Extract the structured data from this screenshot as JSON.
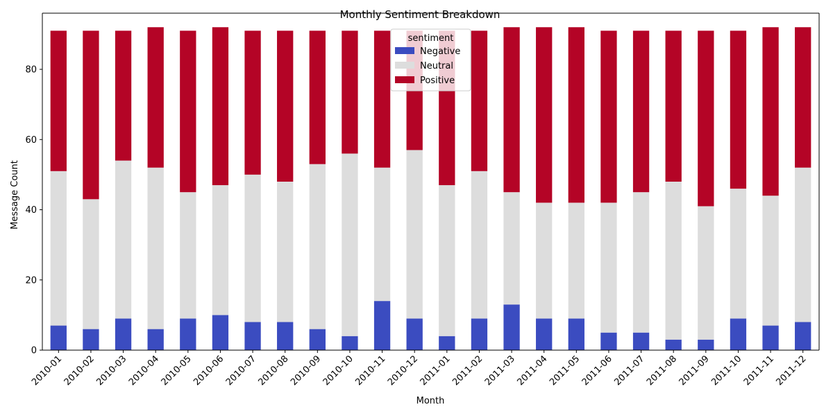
{
  "chart_data": {
    "type": "bar",
    "stacked": true,
    "title": "Monthly Sentiment Breakdown",
    "xlabel": "Month",
    "ylabel": "Message Count",
    "ylim": [
      0,
      96
    ],
    "yticks": [
      0,
      20,
      40,
      60,
      80
    ],
    "grid": false,
    "legend": {
      "title": "sentiment",
      "placement": "top-center"
    },
    "categories": [
      "2010-01",
      "2010-02",
      "2010-03",
      "2010-04",
      "2010-05",
      "2010-06",
      "2010-07",
      "2010-08",
      "2010-09",
      "2010-10",
      "2010-11",
      "2010-12",
      "2011-01",
      "2011-02",
      "2011-03",
      "2011-04",
      "2011-05",
      "2011-06",
      "2011-07",
      "2011-08",
      "2011-09",
      "2011-10",
      "2011-11",
      "2011-12"
    ],
    "series": [
      {
        "name": "Negative",
        "color": "#3b4cc0",
        "values": [
          7,
          6,
          9,
          6,
          9,
          10,
          8,
          8,
          6,
          4,
          14,
          9,
          4,
          9,
          13,
          9,
          9,
          5,
          5,
          3,
          3,
          9,
          7,
          8
        ]
      },
      {
        "name": "Neutral",
        "color": "#dddddd",
        "values": [
          44,
          37,
          45,
          46,
          36,
          37,
          42,
          40,
          47,
          52,
          38,
          48,
          43,
          42,
          32,
          33,
          33,
          37,
          40,
          45,
          38,
          37,
          37,
          44
        ]
      },
      {
        "name": "Positive",
        "color": "#b40426",
        "values": [
          40,
          48,
          37,
          40,
          46,
          45,
          41,
          43,
          38,
          35,
          39,
          34,
          44,
          40,
          47,
          50,
          50,
          49,
          46,
          43,
          50,
          45,
          48,
          40
        ]
      }
    ]
  }
}
